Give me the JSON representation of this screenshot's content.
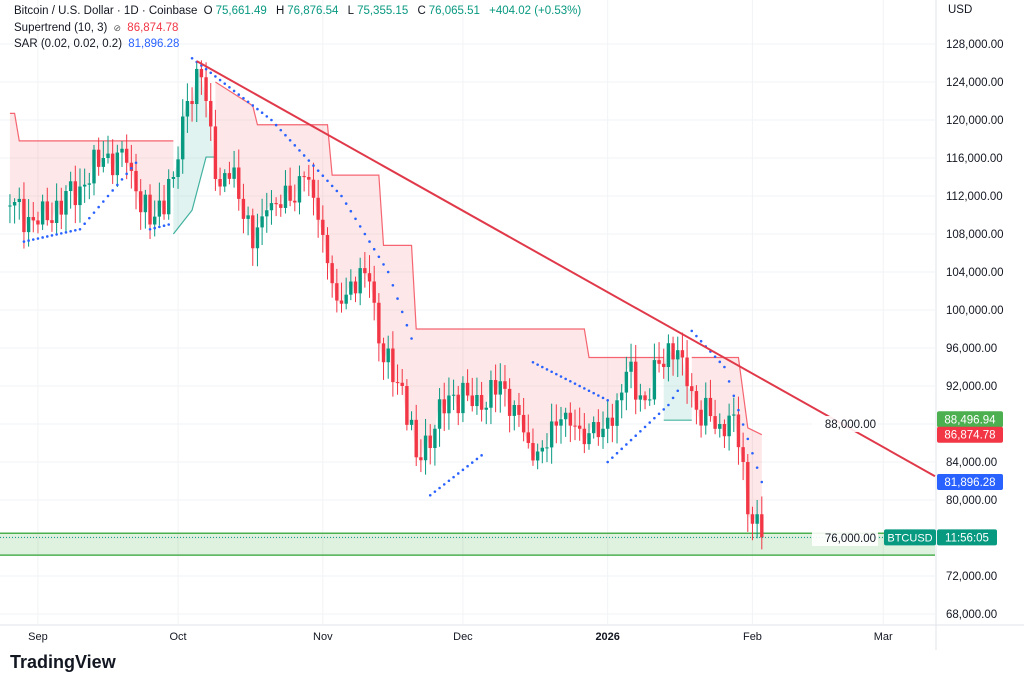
{
  "legend": {
    "symbol": "Bitcoin / U.S. Dollar · 1D · Coinbase",
    "open_label": "O",
    "open": "75,661.49",
    "high_label": "H",
    "high": "76,876.54",
    "low_label": "L",
    "low": "75,355.15",
    "close_label": "C",
    "close": "76,065.51",
    "change": "+404.02 (+0.53%)",
    "supertrend_label": "Supertrend (10, 3)",
    "supertrend_icon": "hidden-eye-icon",
    "supertrend_value": "86,874.78",
    "sar_label": "SAR (0.02, 0.02, 0.2)",
    "sar_value": "81,896.28"
  },
  "currency": "USD",
  "brand": "TradingView",
  "colors": {
    "up": "#089981",
    "down": "#f23645",
    "sar": "#2962ff",
    "trendline": "#e0394a",
    "zone": "#4caf50"
  },
  "chart_data": {
    "type": "candlestick",
    "title": "Bitcoin / U.S. Dollar · 1D · Coinbase",
    "ylim": [
      66000,
      131000
    ],
    "y_ticks": [
      68000,
      72000,
      76000,
      80000,
      84000,
      88000,
      92000,
      96000,
      100000,
      104000,
      108000,
      112000,
      116000,
      120000,
      124000,
      128000
    ],
    "y_tick_labels": [
      "68,000.00",
      "72,000.00",
      "76,000.00",
      "80,000.00",
      "84,000.00",
      "88,000.00",
      "92,000.00",
      "96,000.00",
      "100,000.00",
      "104,000.00",
      "108,000.00",
      "112,000.00",
      "116,000.00",
      "120,000.00",
      "124,000.00",
      "128,000.00"
    ],
    "x_ticks": [
      {
        "day": 5,
        "label": "Sep"
      },
      {
        "day": 35,
        "label": "Oct"
      },
      {
        "day": 66,
        "label": "Nov"
      },
      {
        "day": 96,
        "label": "Dec"
      },
      {
        "day": 127,
        "label": "2026",
        "bold": true
      },
      {
        "day": 158,
        "label": "Feb"
      },
      {
        "day": 186,
        "label": "Mar"
      }
    ],
    "close_keypoints": [
      [
        -1,
        111000
      ],
      [
        5,
        109000
      ],
      [
        14,
        113000
      ],
      [
        19,
        116000
      ],
      [
        24,
        115500
      ],
      [
        26,
        112500
      ],
      [
        29,
        109000
      ],
      [
        34,
        114000
      ],
      [
        37,
        122000
      ],
      [
        40,
        124500
      ],
      [
        44,
        113000
      ],
      [
        47,
        115000
      ],
      [
        51,
        106500
      ],
      [
        54,
        110500
      ],
      [
        59,
        111500
      ],
      [
        62,
        114000
      ],
      [
        65,
        109500
      ],
      [
        69,
        101000
      ],
      [
        72,
        103000
      ],
      [
        76,
        103000
      ],
      [
        79,
        94500
      ],
      [
        83,
        92000
      ],
      [
        86,
        84500
      ],
      [
        90,
        87500
      ],
      [
        93,
        91000
      ],
      [
        97,
        91000
      ],
      [
        100,
        89500
      ],
      [
        104,
        92500
      ],
      [
        107,
        90000
      ],
      [
        110,
        86000
      ],
      [
        113,
        85500
      ],
      [
        117,
        88500
      ],
      [
        121,
        87500
      ],
      [
        126,
        87500
      ],
      [
        129,
        90500
      ],
      [
        131,
        93500
      ],
      [
        135,
        90500
      ],
      [
        140,
        96500
      ],
      [
        143,
        95000
      ],
      [
        146,
        89500
      ],
      [
        151,
        88000
      ],
      [
        154,
        89000
      ],
      [
        156,
        84000
      ],
      [
        157,
        78500
      ],
      [
        158,
        77500
      ],
      [
        159,
        78500
      ],
      [
        160,
        76065
      ]
    ],
    "supertrend": [
      {
        "dir": "down",
        "points": [
          [
            -1,
            120700
          ],
          [
            0,
            120700
          ],
          [
            1,
            117800
          ],
          [
            34,
            117800
          ]
        ]
      },
      {
        "dir": "up",
        "points": [
          [
            34,
            108000
          ],
          [
            38,
            110500
          ],
          [
            41,
            116100
          ],
          [
            43,
            116100
          ]
        ]
      },
      {
        "dir": "down",
        "points": [
          [
            43,
            124000
          ],
          [
            51,
            121500
          ],
          [
            52,
            119500
          ],
          [
            67,
            119500
          ],
          [
            68,
            114200
          ],
          [
            78,
            114200
          ],
          [
            79,
            106800
          ],
          [
            85,
            106800
          ],
          [
            86,
            98000
          ],
          [
            122,
            98000
          ],
          [
            123,
            95000
          ],
          [
            139,
            95000
          ]
        ]
      },
      {
        "dir": "up",
        "points": [
          [
            139,
            88400
          ],
          [
            145,
            88400
          ]
        ]
      },
      {
        "dir": "down",
        "points": [
          [
            145,
            95000
          ],
          [
            155,
            95000
          ],
          [
            157,
            87600
          ],
          [
            160,
            86875
          ]
        ]
      }
    ],
    "sar": [
      {
        "pos": "below",
        "points": [
          [
            2,
            107200
          ],
          [
            14,
            108500
          ],
          [
            26,
            115500
          ]
        ]
      },
      {
        "pos": "below",
        "points": [
          [
            29,
            108500
          ],
          [
            33,
            109000
          ]
        ]
      },
      {
        "pos": "above",
        "points": [
          [
            38,
            126500
          ],
          [
            55,
            120000
          ],
          [
            70,
            112000
          ],
          [
            80,
            104000
          ],
          [
            85,
            97000
          ]
        ]
      },
      {
        "pos": "below",
        "points": [
          [
            89,
            80500
          ],
          [
            100,
            84700
          ]
        ]
      },
      {
        "pos": "above",
        "points": [
          [
            111,
            94500
          ],
          [
            127,
            90500
          ]
        ]
      },
      {
        "pos": "below",
        "points": [
          [
            127,
            84000
          ],
          [
            140,
            90000
          ],
          [
            142,
            91500
          ]
        ]
      },
      {
        "pos": "above",
        "points": [
          [
            145,
            97800
          ],
          [
            152,
            94000
          ],
          [
            160,
            81896
          ]
        ]
      }
    ],
    "trendline": [
      [
        39,
        126200
      ],
      [
        200,
        81700
      ]
    ],
    "support_zone": [
      74200,
      76500
    ],
    "last_price": 76065.51,
    "price_labels": [
      {
        "name": "supertrend-up-label",
        "value": 88496.94,
        "text": "88,496.94",
        "color": "#4caf50"
      },
      {
        "name": "supertrend-down-label",
        "value": 86874.78,
        "text": "86,874.78",
        "color": "#f23645"
      },
      {
        "name": "sar-label",
        "value": 81896.28,
        "text": "81,896.28",
        "color": "#2962ff"
      }
    ],
    "symbol_tag": "BTCUSD",
    "countdown": "11:56:05"
  }
}
